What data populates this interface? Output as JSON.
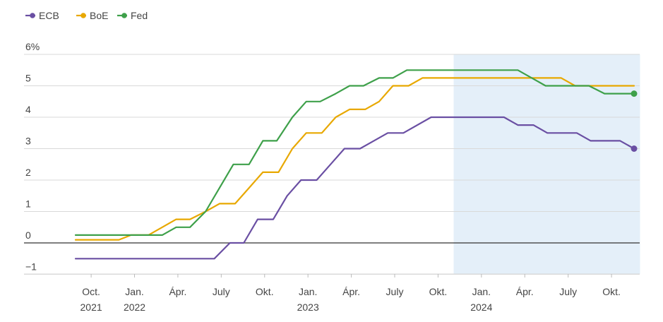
{
  "chart_data": {
    "type": "line",
    "y_unit_label": "6%",
    "ylim": [
      -1.2,
      6
    ],
    "yticks": [
      -1,
      0,
      1,
      2,
      3,
      4,
      5,
      6
    ],
    "ytick_labels": [
      "−1",
      "0",
      "1",
      "2",
      "3",
      "4",
      "5",
      "6%"
    ],
    "xlim": [
      2021.62,
      2024.93
    ],
    "xticks": [
      {
        "x": 2021.79,
        "line1": "Oct.",
        "line2": "2021"
      },
      {
        "x": 2022.04,
        "line1": "Jan.",
        "line2": "2022"
      },
      {
        "x": 2022.29,
        "line1": "Ápr.",
        "line2": ""
      },
      {
        "x": 2022.54,
        "line1": "July",
        "line2": ""
      },
      {
        "x": 2022.79,
        "line1": "Okt.",
        "line2": ""
      },
      {
        "x": 2023.04,
        "line1": "Jan.",
        "line2": "2023"
      },
      {
        "x": 2023.29,
        "line1": "Ápr.",
        "line2": ""
      },
      {
        "x": 2023.54,
        "line1": "July",
        "line2": ""
      },
      {
        "x": 2023.79,
        "line1": "Okt.",
        "line2": ""
      },
      {
        "x": 2024.04,
        "line1": "Jan.",
        "line2": "2024"
      },
      {
        "x": 2024.29,
        "line1": "Ápr.",
        "line2": ""
      },
      {
        "x": 2024.54,
        "line1": "July",
        "line2": ""
      },
      {
        "x": 2024.79,
        "line1": "Okt.",
        "line2": ""
      }
    ],
    "shaded_region": {
      "x_start": 2023.88,
      "x_end": 2024.93,
      "color": "#e4eff9"
    },
    "grid": true,
    "legend_position": "top-left",
    "series": [
      {
        "name": "ECB",
        "color": "#6a4fa3",
        "end_marker": true,
        "points": [
          [
            2021.7,
            -0.5
          ],
          [
            2022.5,
            -0.5
          ],
          [
            2022.59,
            0
          ],
          [
            2022.67,
            0
          ],
          [
            2022.75,
            0.75
          ],
          [
            2022.84,
            0.75
          ],
          [
            2022.92,
            1.5
          ],
          [
            2023.0,
            2.0
          ],
          [
            2023.09,
            2.0
          ],
          [
            2023.17,
            2.5
          ],
          [
            2023.25,
            3.0
          ],
          [
            2023.34,
            3.0
          ],
          [
            2023.42,
            3.25
          ],
          [
            2023.5,
            3.5
          ],
          [
            2023.59,
            3.5
          ],
          [
            2023.75,
            4.0
          ],
          [
            2024.17,
            4.0
          ],
          [
            2024.25,
            3.75
          ],
          [
            2024.34,
            3.75
          ],
          [
            2024.42,
            3.5
          ],
          [
            2024.59,
            3.5
          ],
          [
            2024.67,
            3.25
          ],
          [
            2024.84,
            3.25
          ],
          [
            2024.92,
            3.0
          ]
        ]
      },
      {
        "name": "BoE",
        "color": "#e8a800",
        "end_marker": false,
        "points": [
          [
            2021.7,
            0.1
          ],
          [
            2021.95,
            0.1
          ],
          [
            2022.02,
            0.25
          ],
          [
            2022.12,
            0.25
          ],
          [
            2022.2,
            0.5
          ],
          [
            2022.28,
            0.75
          ],
          [
            2022.36,
            0.75
          ],
          [
            2022.45,
            1.0
          ],
          [
            2022.53,
            1.25
          ],
          [
            2022.62,
            1.25
          ],
          [
            2022.7,
            1.75
          ],
          [
            2022.78,
            2.25
          ],
          [
            2022.87,
            2.25
          ],
          [
            2022.95,
            3.0
          ],
          [
            2023.03,
            3.5
          ],
          [
            2023.12,
            3.5
          ],
          [
            2023.2,
            4.0
          ],
          [
            2023.28,
            4.25
          ],
          [
            2023.37,
            4.25
          ],
          [
            2023.45,
            4.5
          ],
          [
            2023.53,
            5.0
          ],
          [
            2023.62,
            5.0
          ],
          [
            2023.7,
            5.25
          ],
          [
            2024.5,
            5.25
          ],
          [
            2024.58,
            5.0
          ],
          [
            2024.92,
            5.0
          ]
        ]
      },
      {
        "name": "Fed",
        "color": "#3ea04a",
        "end_marker": true,
        "points": [
          [
            2021.7,
            0.25
          ],
          [
            2022.2,
            0.25
          ],
          [
            2022.28,
            0.5
          ],
          [
            2022.36,
            0.5
          ],
          [
            2022.45,
            1.0
          ],
          [
            2022.53,
            1.75
          ],
          [
            2022.61,
            2.5
          ],
          [
            2022.7,
            2.5
          ],
          [
            2022.78,
            3.25
          ],
          [
            2022.86,
            3.25
          ],
          [
            2022.95,
            4.0
          ],
          [
            2023.03,
            4.5
          ],
          [
            2023.11,
            4.5
          ],
          [
            2023.2,
            4.75
          ],
          [
            2023.28,
            5.0
          ],
          [
            2023.36,
            5.0
          ],
          [
            2023.45,
            5.25
          ],
          [
            2023.53,
            5.25
          ],
          [
            2023.61,
            5.5
          ],
          [
            2024.25,
            5.5
          ],
          [
            2024.33,
            5.25
          ],
          [
            2024.41,
            5.0
          ],
          [
            2024.66,
            5.0
          ],
          [
            2024.75,
            4.75
          ],
          [
            2024.92,
            4.75
          ]
        ]
      }
    ]
  }
}
